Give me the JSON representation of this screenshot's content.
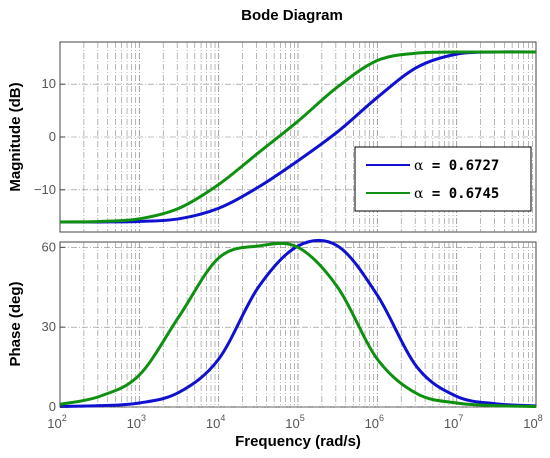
{
  "figure_title": "Bode Diagram",
  "xlabel": "Frequency  (rad/s)",
  "colors": {
    "series1": "#1010d0",
    "series2": "#109010",
    "grid": "#888888"
  },
  "legend": [
    {
      "symbol": "α",
      "text": " = 0.6727"
    },
    {
      "symbol": "α",
      "text": " = 0.6745"
    }
  ],
  "chart_data": [
    {
      "type": "line",
      "panel": "magnitude",
      "ylabel": "Magnitude (dB)",
      "xscale": "log",
      "xlim": [
        100,
        100000000
      ],
      "ylim": [
        -18,
        18
      ],
      "yticks": [
        -10,
        0,
        10
      ],
      "xticks": [
        {
          "base": "10",
          "exp": "2"
        },
        {
          "base": "10",
          "exp": "3"
        },
        {
          "base": "10",
          "exp": "4"
        },
        {
          "base": "10",
          "exp": "5"
        },
        {
          "base": "10",
          "exp": "6"
        },
        {
          "base": "10",
          "exp": "7"
        },
        {
          "base": "10",
          "exp": "8"
        }
      ],
      "grid": true,
      "legend_position": "right",
      "x": [
        100,
        316,
        1000,
        3162,
        10000,
        31623,
        100000,
        316228,
        1000000,
        3162278,
        10000000,
        31622777,
        100000000
      ],
      "series": [
        {
          "name": "α = 0.6727",
          "values": [
            -16.1,
            -16.1,
            -16.0,
            -15.5,
            -13.5,
            -9.5,
            -4.5,
            1.0,
            7.5,
            13.2,
            15.7,
            16.1,
            16.1
          ]
        },
        {
          "name": "α = 0.6745",
          "values": [
            -16.1,
            -16.0,
            -15.5,
            -13.5,
            -9.0,
            -3.0,
            3.0,
            9.5,
            14.5,
            15.9,
            16.1,
            16.1,
            16.1
          ]
        }
      ]
    },
    {
      "type": "line",
      "panel": "phase",
      "ylabel": "Phase (deg)",
      "xscale": "log",
      "xlim": [
        100,
        100000000
      ],
      "ylim": [
        0,
        62
      ],
      "yticks": [
        0,
        30,
        60
      ],
      "xticks": [
        {
          "base": "10",
          "exp": "2"
        },
        {
          "base": "10",
          "exp": "3"
        },
        {
          "base": "10",
          "exp": "4"
        },
        {
          "base": "10",
          "exp": "5"
        },
        {
          "base": "10",
          "exp": "6"
        },
        {
          "base": "10",
          "exp": "7"
        },
        {
          "base": "10",
          "exp": "8"
        }
      ],
      "grid": true,
      "x": [
        100,
        316,
        1000,
        3162,
        10000,
        31623,
        100000,
        316228,
        1000000,
        3162278,
        10000000,
        31622777,
        100000000
      ],
      "series": [
        {
          "name": "α = 0.6727",
          "values": [
            0.2,
            0.5,
            1.5,
            5.5,
            18.0,
            45.0,
            60.5,
            60.5,
            42.0,
            15.0,
            4.0,
            1.2,
            0.4
          ]
        },
        {
          "name": "α = 0.6745",
          "values": [
            1.0,
            4.0,
            12.0,
            34.0,
            56.0,
            60.5,
            60.0,
            45.0,
            18.0,
            5.0,
            1.5,
            0.5,
            0.2
          ]
        }
      ]
    }
  ]
}
